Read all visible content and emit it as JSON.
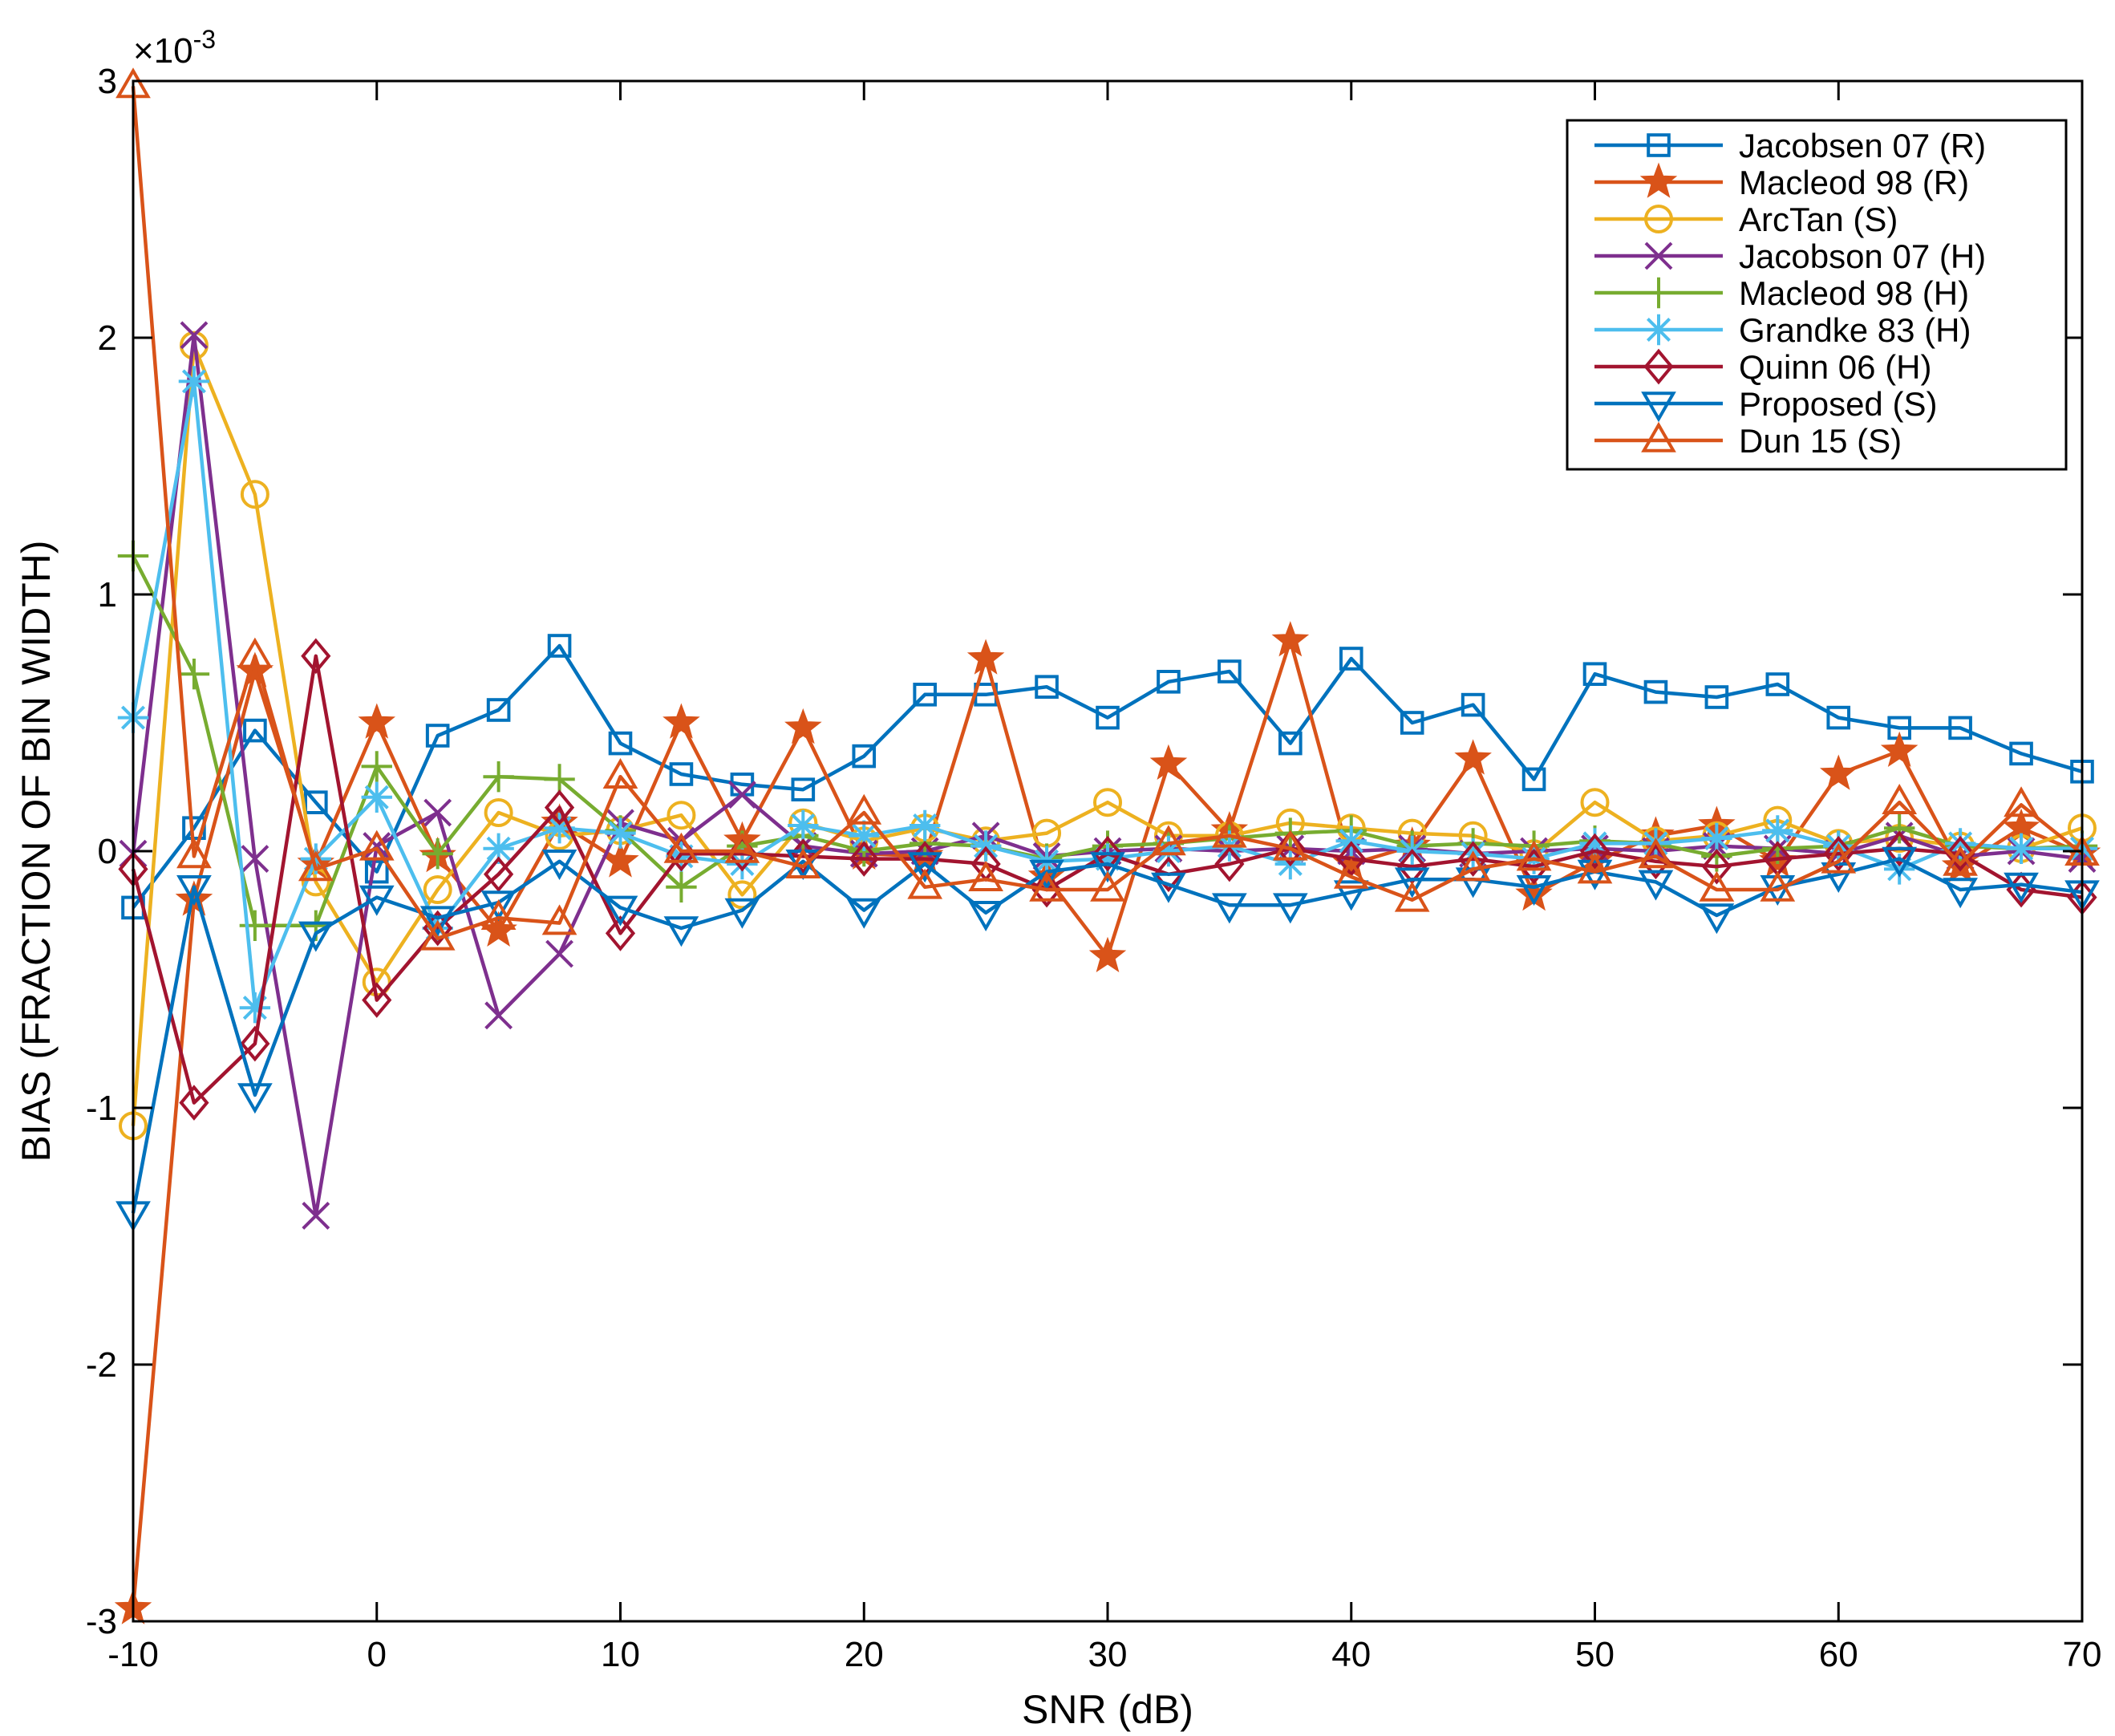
{
  "chart_data": {
    "type": "line",
    "title": "",
    "xlabel": "SNR (dB)",
    "ylabel": "BIAS (FRACTION OF BIN WIDTH)",
    "y_exponent_label": "×10",
    "y_exponent_power": "-3",
    "xlim": [
      -10,
      70
    ],
    "ylim": [
      -3,
      3
    ],
    "x_ticks": [
      -10,
      0,
      10,
      20,
      30,
      40,
      50,
      60,
      70
    ],
    "x_tick_labels": [
      "-10",
      "0",
      "10",
      "20",
      "30",
      "40",
      "50",
      "60",
      "70"
    ],
    "y_ticks": [
      -3,
      -2,
      -1,
      0,
      1,
      2,
      3
    ],
    "y_tick_labels": [
      "-3",
      "-2",
      "-1",
      "0",
      "1",
      "2",
      "3"
    ],
    "grid": false,
    "legend_position": "top-right",
    "x": [
      -10,
      -7.5,
      -5,
      -2.5,
      0,
      2.5,
      5,
      7.5,
      10,
      12.5,
      15,
      17.5,
      20,
      22.5,
      25,
      27.5,
      30,
      32.5,
      35,
      37.5,
      40,
      42.5,
      45,
      47.5,
      50,
      52.5,
      55,
      57.5,
      60,
      62.5,
      65,
      67.5,
      70
    ],
    "series": [
      {
        "name": "Jacobsen 07 (R)",
        "color": "#0072BD",
        "marker": "square",
        "values": [
          -0.22,
          0.09,
          0.47,
          0.19,
          -0.08,
          0.45,
          0.55,
          0.8,
          0.42,
          0.3,
          0.26,
          0.24,
          0.37,
          0.61,
          0.61,
          0.64,
          0.52,
          0.66,
          0.7,
          0.42,
          0.75,
          0.5,
          0.57,
          0.28,
          0.69,
          0.62,
          0.6,
          0.65,
          0.52,
          0.48,
          0.48,
          0.38,
          0.31
        ]
      },
      {
        "name": "Macleod 98 (R)",
        "color": "#D95319",
        "marker": "pentagram",
        "values": [
          -2.95,
          -0.19,
          0.7,
          -0.05,
          0.5,
          -0.02,
          -0.31,
          0.11,
          -0.04,
          0.5,
          0.04,
          0.48,
          -0.01,
          -0.02,
          0.75,
          -0.1,
          -0.41,
          0.34,
          0.08,
          0.82,
          -0.05,
          0.02,
          0.36,
          -0.17,
          -0.04,
          0.06,
          0.1,
          -0.04,
          0.3,
          0.39,
          -0.06,
          0.09,
          -0.01
        ]
      },
      {
        "name": "ArcTan (S)",
        "color": "#EDB120",
        "marker": "circle",
        "values": [
          -1.07,
          1.97,
          1.39,
          -0.12,
          -0.51,
          -0.15,
          0.15,
          0.06,
          0.08,
          0.14,
          -0.17,
          0.11,
          0.04,
          0.09,
          0.04,
          0.07,
          0.19,
          0.06,
          0.06,
          0.11,
          0.09,
          0.07,
          0.06,
          -0.01,
          0.19,
          0.04,
          0.06,
          0.12,
          0.03,
          0.05,
          0.02,
          0.01,
          0.09
        ]
      },
      {
        "name": "Jacobson 07 (H)",
        "color": "#7E2F8E",
        "marker": "x",
        "values": [
          -0.01,
          2.01,
          -0.03,
          -1.42,
          0.02,
          0.15,
          -0.64,
          -0.4,
          0.11,
          0.04,
          0.22,
          0.02,
          -0.01,
          0.0,
          0.06,
          -0.02,
          0.0,
          0.01,
          0.0,
          0.01,
          0.0,
          0.01,
          -0.01,
          0.0,
          0.01,
          0.0,
          0.02,
          0.01,
          -0.01,
          0.06,
          -0.02,
          0.0,
          -0.03
        ]
      },
      {
        "name": "Macleod 98 (H)",
        "color": "#77AC30",
        "marker": "plus",
        "values": [
          1.15,
          0.69,
          -0.29,
          -0.29,
          0.33,
          -0.01,
          0.29,
          0.28,
          0.08,
          -0.14,
          0.02,
          0.06,
          0.0,
          0.03,
          0.02,
          -0.03,
          0.02,
          0.03,
          0.05,
          0.07,
          0.08,
          0.02,
          0.03,
          0.02,
          0.04,
          0.03,
          -0.02,
          0.01,
          0.02,
          0.09,
          0.02,
          0.01,
          0.02
        ]
      },
      {
        "name": "Grandke 83 (H)",
        "color": "#4DBEEE",
        "marker": "asterisk",
        "values": [
          0.52,
          1.83,
          -0.61,
          -0.03,
          0.21,
          -0.3,
          0.01,
          0.09,
          0.07,
          -0.02,
          -0.05,
          0.1,
          0.06,
          0.1,
          0.02,
          -0.04,
          -0.03,
          0.0,
          0.02,
          -0.05,
          0.04,
          0.0,
          -0.01,
          -0.03,
          0.03,
          0.03,
          0.05,
          0.08,
          0.02,
          -0.07,
          0.03,
          0.01,
          0.01
        ]
      },
      {
        "name": "Quinn 06 (H)",
        "color": "#A2142F",
        "marker": "diamond",
        "values": [
          -0.07,
          -0.98,
          -0.75,
          0.76,
          -0.58,
          -0.3,
          -0.09,
          0.17,
          -0.32,
          -0.01,
          -0.01,
          -0.02,
          -0.03,
          -0.03,
          -0.05,
          -0.15,
          -0.01,
          -0.09,
          -0.05,
          0.01,
          -0.03,
          -0.06,
          -0.03,
          -0.06,
          0.0,
          -0.04,
          -0.06,
          -0.03,
          -0.01,
          0.01,
          -0.01,
          -0.15,
          -0.18
        ]
      },
      {
        "name": "Proposed (S)",
        "color": "#0072BD",
        "marker": "triangle-down",
        "values": [
          -1.41,
          -0.14,
          -0.95,
          -0.32,
          -0.18,
          -0.26,
          -0.2,
          -0.04,
          -0.22,
          -0.3,
          -0.23,
          -0.04,
          -0.23,
          -0.05,
          -0.24,
          -0.08,
          -0.05,
          -0.13,
          -0.21,
          -0.21,
          -0.16,
          -0.11,
          -0.11,
          -0.14,
          -0.08,
          -0.12,
          -0.25,
          -0.14,
          -0.09,
          -0.03,
          -0.15,
          -0.13,
          -0.16
        ]
      },
      {
        "name": "Dun 15 (S)",
        "color": "#D95319",
        "marker": "triangle-up",
        "values": [
          2.98,
          -0.02,
          0.76,
          -0.07,
          0.01,
          -0.34,
          -0.26,
          -0.28,
          0.29,
          0.0,
          0.0,
          -0.06,
          0.15,
          -0.14,
          -0.11,
          -0.15,
          -0.15,
          0.03,
          0.06,
          0.01,
          -0.1,
          -0.19,
          -0.07,
          -0.03,
          -0.08,
          -0.02,
          -0.15,
          -0.15,
          -0.04,
          0.19,
          -0.05,
          0.18,
          -0.01
        ]
      }
    ]
  }
}
